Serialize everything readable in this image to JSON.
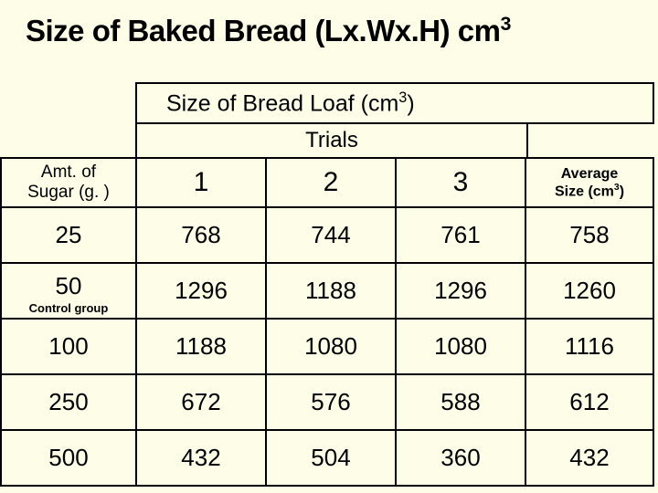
{
  "title_prefix": "Size of Baked Bread (Lx.Wx.H) cm",
  "title_sup": "3",
  "subtitle_prefix": "Size of Bread Loaf (cm",
  "subtitle_sup": "3",
  "subtitle_suffix": ")",
  "trials_label": "Trials",
  "headers": {
    "sugar_line1": "Amt. of",
    "sugar_line2": "Sugar (g. )",
    "t1": "1",
    "t2": "2",
    "t3": "3",
    "avg_line1": "Average",
    "avg_line2_prefix": "Size (cm",
    "avg_line2_sup": "3",
    "avg_line2_suffix": ")"
  },
  "control_label": "Control group",
  "rows": [
    {
      "sugar": "25",
      "t1": "768",
      "t2": "744",
      "t3": "761",
      "avg": "758",
      "control": false
    },
    {
      "sugar": "50",
      "t1": "1296",
      "t2": "1188",
      "t3": "1296",
      "avg": "1260",
      "control": true
    },
    {
      "sugar": "100",
      "t1": "1188",
      "t2": "1080",
      "t3": "1080",
      "avg": "1116",
      "control": false
    },
    {
      "sugar": "250",
      "t1": "672",
      "t2": "576",
      "t3": "588",
      "avg": "612",
      "control": false
    },
    {
      "sugar": "500",
      "t1": "432",
      "t2": "504",
      "t3": "360",
      "avg": "432",
      "control": false
    }
  ]
}
